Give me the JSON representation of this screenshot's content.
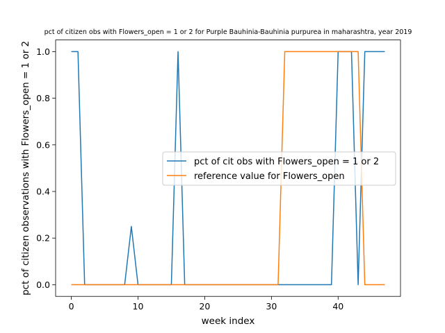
{
  "chart_data": {
    "type": "line",
    "title": "pct of citizen obs with Flowers_open = 1 or 2 for Purple Bauhinia-Bauhinia purpurea in maharashtra, year 2019",
    "xlabel": "week index",
    "ylabel": "pct of citizen observations with Flowers_open = 1 or 2",
    "xlim": [
      -2.35,
      49.35
    ],
    "ylim": [
      -0.05,
      1.05
    ],
    "xticks": [
      0,
      10,
      20,
      30,
      40
    ],
    "yticks": [
      0.0,
      0.2,
      0.4,
      0.6,
      0.8,
      1.0
    ],
    "xtick_labels": [
      "0",
      "10",
      "20",
      "30",
      "40"
    ],
    "ytick_labels": [
      "0.0",
      "0.2",
      "0.4",
      "0.6",
      "0.8",
      "1.0"
    ],
    "grid": false,
    "legend_position": "center-right",
    "series": [
      {
        "name": "pct of cit obs with Flowers_open = 1 or 2",
        "color": "#1f77b4",
        "x": [
          0,
          1,
          2,
          3,
          4,
          5,
          6,
          7,
          8,
          9,
          10,
          11,
          12,
          13,
          14,
          15,
          16,
          17,
          18,
          19,
          20,
          21,
          22,
          23,
          24,
          25,
          26,
          27,
          28,
          29,
          30,
          31,
          32,
          33,
          34,
          35,
          36,
          37,
          38,
          39,
          40,
          41,
          42,
          43,
          44,
          45,
          46,
          47
        ],
        "y": [
          1,
          1,
          0,
          0,
          0,
          0,
          0,
          0,
          0,
          0.25,
          0,
          0,
          0,
          0,
          0,
          0,
          1,
          0,
          0,
          0,
          0,
          0,
          0,
          0,
          0,
          0,
          0,
          0,
          0,
          0,
          0,
          0,
          0,
          0,
          0,
          0,
          0,
          0,
          0,
          0,
          1,
          1,
          1,
          0,
          1,
          1,
          1,
          1
        ]
      },
      {
        "name": "reference value for Flowers_open",
        "color": "#ff7f0e",
        "x": [
          0,
          1,
          2,
          3,
          4,
          5,
          6,
          7,
          8,
          9,
          10,
          11,
          12,
          13,
          14,
          15,
          16,
          17,
          18,
          19,
          20,
          21,
          22,
          23,
          24,
          25,
          26,
          27,
          28,
          29,
          30,
          31,
          32,
          33,
          34,
          35,
          36,
          37,
          38,
          39,
          40,
          41,
          42,
          43,
          44,
          45,
          46,
          47
        ],
        "y": [
          0,
          0,
          0,
          0,
          0,
          0,
          0,
          0,
          0,
          0,
          0,
          0,
          0,
          0,
          0,
          0,
          0,
          0,
          0,
          0,
          0,
          0,
          0,
          0,
          0,
          0,
          0,
          0,
          0,
          0,
          0,
          0,
          1,
          1,
          1,
          1,
          1,
          1,
          1,
          1,
          1,
          1,
          1,
          1,
          0,
          0,
          0,
          0
        ]
      }
    ]
  }
}
